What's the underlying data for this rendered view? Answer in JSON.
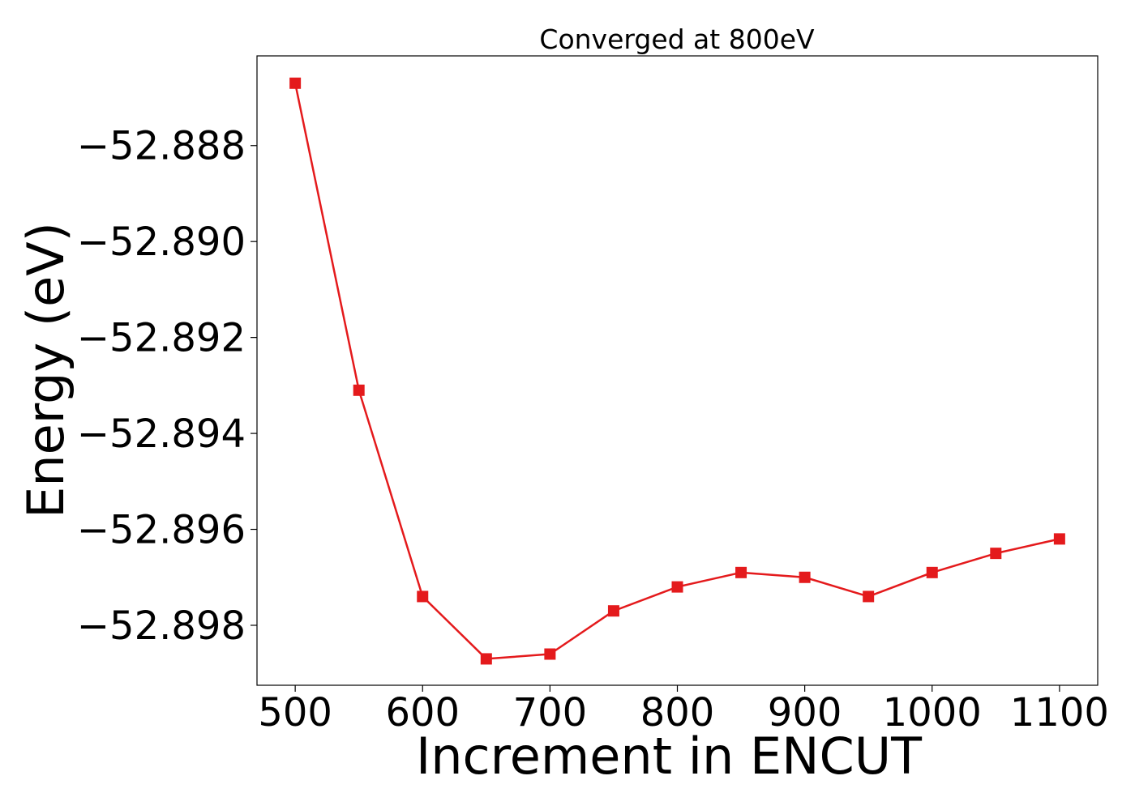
{
  "chart_data": {
    "type": "line",
    "title": "Converged at 800eV",
    "xlabel": "Increment in ENCUT",
    "ylabel": "Energy (eV)",
    "xlim": [
      470,
      1130
    ],
    "ylim": [
      -52.89925,
      -52.88613
    ],
    "x_ticks": [
      500,
      600,
      700,
      800,
      900,
      1000,
      1100
    ],
    "x_tick_labels": [
      "500",
      "600",
      "700",
      "800",
      "900",
      "1000",
      "1100"
    ],
    "y_ticks": [
      -52.888,
      -52.89,
      -52.892,
      -52.894,
      -52.896,
      -52.898
    ],
    "y_tick_labels": [
      "−52.888",
      "−52.890",
      "−52.892",
      "−52.894",
      "−52.896",
      "−52.898"
    ],
    "grid": false,
    "series": [
      {
        "color": "#e41a1c",
        "marker": "square",
        "x": [
          500,
          550,
          600,
          650,
          700,
          750,
          800,
          850,
          900,
          950,
          1000,
          1050,
          1100
        ],
        "y": [
          -52.8867,
          -52.8931,
          -52.8974,
          -52.8987,
          -52.8986,
          -52.8977,
          -52.8972,
          -52.8969,
          -52.897,
          -52.8974,
          -52.8969,
          -52.8965,
          -52.8962
        ]
      }
    ]
  }
}
